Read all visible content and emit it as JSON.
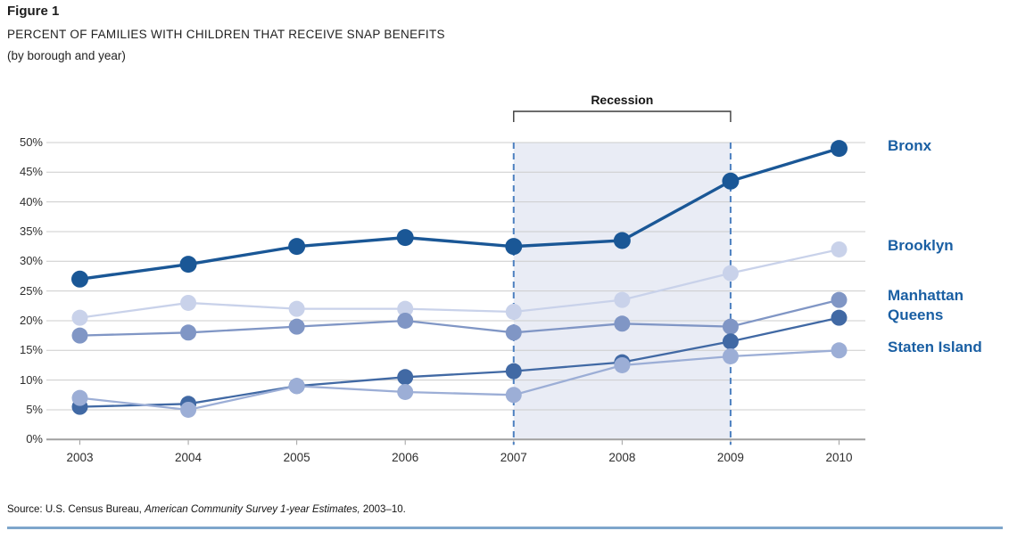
{
  "figure": {
    "label": "Figure 1",
    "title": "PERCENT OF FAMILIES WITH CHILDREN THAT RECEIVE SNAP BENEFITS",
    "subtitle": "(by borough and year)"
  },
  "recession_label": "Recession",
  "source": {
    "prefix": "Source: U.S. Census Bureau, ",
    "italic": "American Community Survey 1-year Estimates,",
    "suffix": " 2003–10."
  },
  "colors": {
    "bronx": "#1a5796",
    "brooklyn": "#c9d2ea",
    "manhattan": "#8096c5",
    "queens": "#4169a4",
    "staten_island": "#9caed6",
    "legend_text": "#1a5fa3",
    "recession_fill": "#e9ecf5",
    "recession_border": "#4d80c0",
    "grid": "#cccccc",
    "axis": "#a0a0a0",
    "bracket": "#3c3c3c",
    "bottom_rule": "#7ea6cb"
  },
  "chart_data": {
    "type": "line",
    "title": "PERCENT OF FAMILIES WITH CHILDREN THAT RECEIVE SNAP BENEFITS (by borough and year)",
    "x": [
      2003,
      2004,
      2005,
      2006,
      2007,
      2008,
      2009,
      2010
    ],
    "series": [
      {
        "name": "Bronx",
        "color_key": "bronx",
        "values": [
          27.0,
          29.5,
          32.5,
          34.0,
          32.5,
          33.5,
          43.5,
          49.0
        ]
      },
      {
        "name": "Brooklyn",
        "color_key": "brooklyn",
        "values": [
          20.5,
          23.0,
          22.0,
          22.0,
          21.5,
          23.5,
          28.0,
          32.0
        ]
      },
      {
        "name": "Manhattan",
        "color_key": "manhattan",
        "values": [
          17.5,
          18.0,
          19.0,
          20.0,
          18.0,
          19.5,
          19.0,
          23.5
        ]
      },
      {
        "name": "Queens",
        "color_key": "queens",
        "values": [
          5.5,
          6.0,
          9.0,
          10.5,
          11.5,
          13.0,
          16.5,
          20.5
        ]
      },
      {
        "name": "Staten Island",
        "color_key": "staten_island",
        "values": [
          7.0,
          5.0,
          9.0,
          8.0,
          7.5,
          12.5,
          14.0,
          15.0
        ]
      }
    ],
    "ylim": [
      0,
      50
    ],
    "ytick_step": 5,
    "ytick_suffix": "%",
    "grid": true,
    "legend_position": "right",
    "recession_span": [
      2007,
      2009
    ],
    "draw_order": [
      1,
      2,
      3,
      4,
      0
    ]
  }
}
